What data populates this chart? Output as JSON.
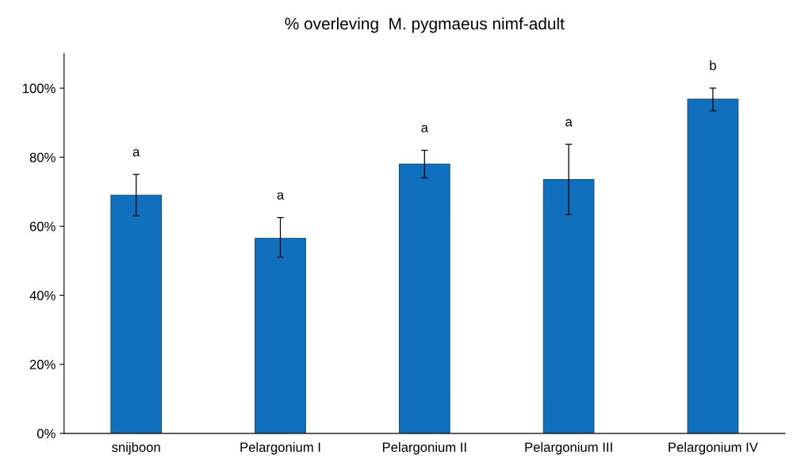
{
  "chart_data": {
    "type": "bar",
    "title": "% overleving  M. pygmaeus nimf-adult",
    "categories": [
      "snijboon",
      "Pelargonium I",
      "Pelargonium II",
      "Pelargonium III",
      "Pelargonium IV"
    ],
    "values": [
      69,
      56.5,
      78,
      73.5,
      96.8
    ],
    "errors": [
      [
        63,
        75
      ],
      [
        51,
        62.5
      ],
      [
        74,
        82
      ],
      [
        63.4,
        83.7
      ],
      [
        93.5,
        100
      ]
    ],
    "color": "#1170be",
    "ylim": [
      0,
      110
    ],
    "yticks": [
      {
        "value": 0,
        "label": "0%"
      },
      {
        "value": 20,
        "label": "20%"
      },
      {
        "value": 40,
        "label": "40%"
      },
      {
        "value": 60,
        "label": "60%"
      },
      {
        "value": 80,
        "label": "80%"
      },
      {
        "value": 100,
        "label": "100%"
      }
    ],
    "grid": false,
    "annotations": [
      "a",
      "a",
      "a",
      "a",
      "b"
    ]
  }
}
